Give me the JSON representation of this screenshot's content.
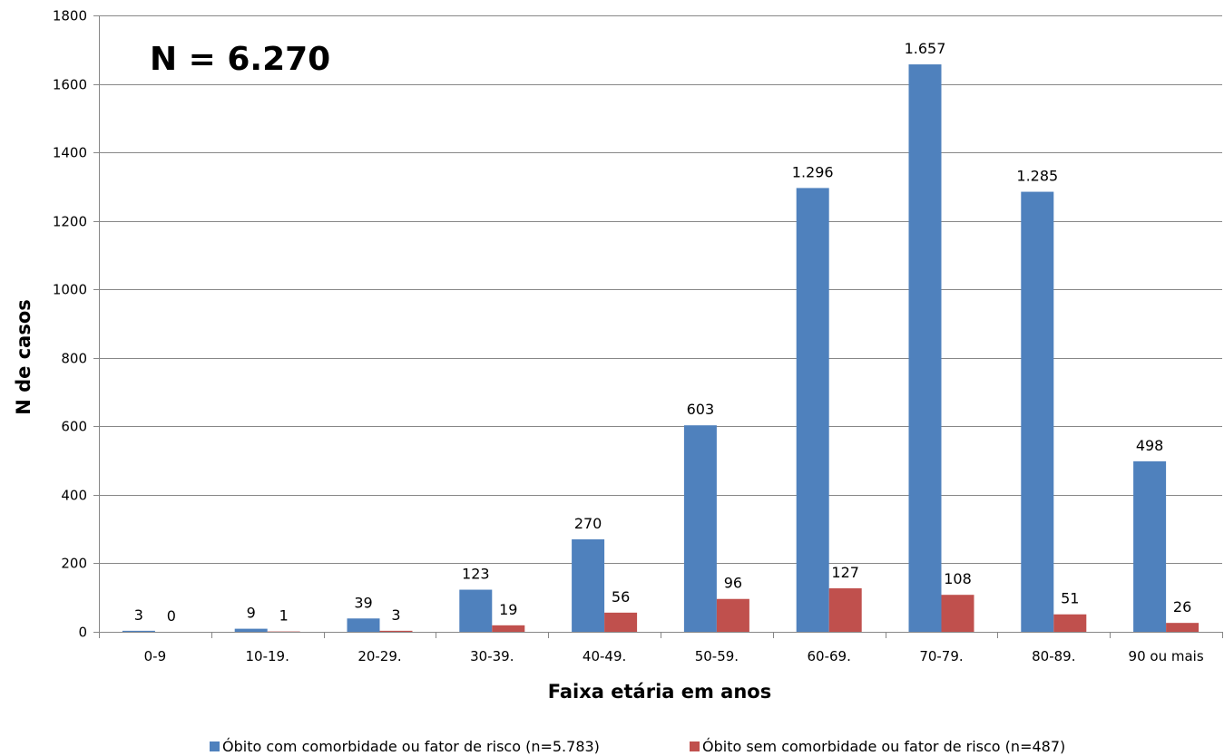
{
  "chart_data": {
    "type": "bar",
    "categories": [
      "0-9",
      "10-19.",
      "20-29.",
      "30-39.",
      "40-49.",
      "50-59.",
      "60-69.",
      "70-79.",
      "80-89.",
      "90 ou mais"
    ],
    "series": [
      {
        "name": "Óbito com comorbidade ou fator de risco (n=5.783)",
        "values": [
          3,
          9,
          39,
          123,
          270,
          603,
          1296,
          1657,
          1285,
          498
        ],
        "labels": [
          "3",
          "9",
          "39",
          "123",
          "270",
          "603",
          "1.296",
          "1.657",
          "1.285",
          "498"
        ],
        "color": "#4f81bd"
      },
      {
        "name": "Óbito sem comorbidade ou fator de risco (n=487)",
        "values": [
          0,
          1,
          3,
          19,
          56,
          96,
          127,
          108,
          51,
          26
        ],
        "labels": [
          "0",
          "1",
          "3",
          "19",
          "56",
          "96",
          "127",
          "108",
          "51",
          "26"
        ],
        "color": "#c0504d"
      }
    ],
    "title": "",
    "annotation": "N = 6.270",
    "xlabel": "Faixa etária em anos",
    "ylabel": "N de casos",
    "ylim": [
      0,
      1800
    ],
    "yticks": [
      0,
      200,
      400,
      600,
      800,
      1000,
      1200,
      1400,
      1600,
      1800
    ],
    "grid": true,
    "legend_position": "bottom",
    "gridline_color": "#878787",
    "axis_color": "#878787"
  }
}
